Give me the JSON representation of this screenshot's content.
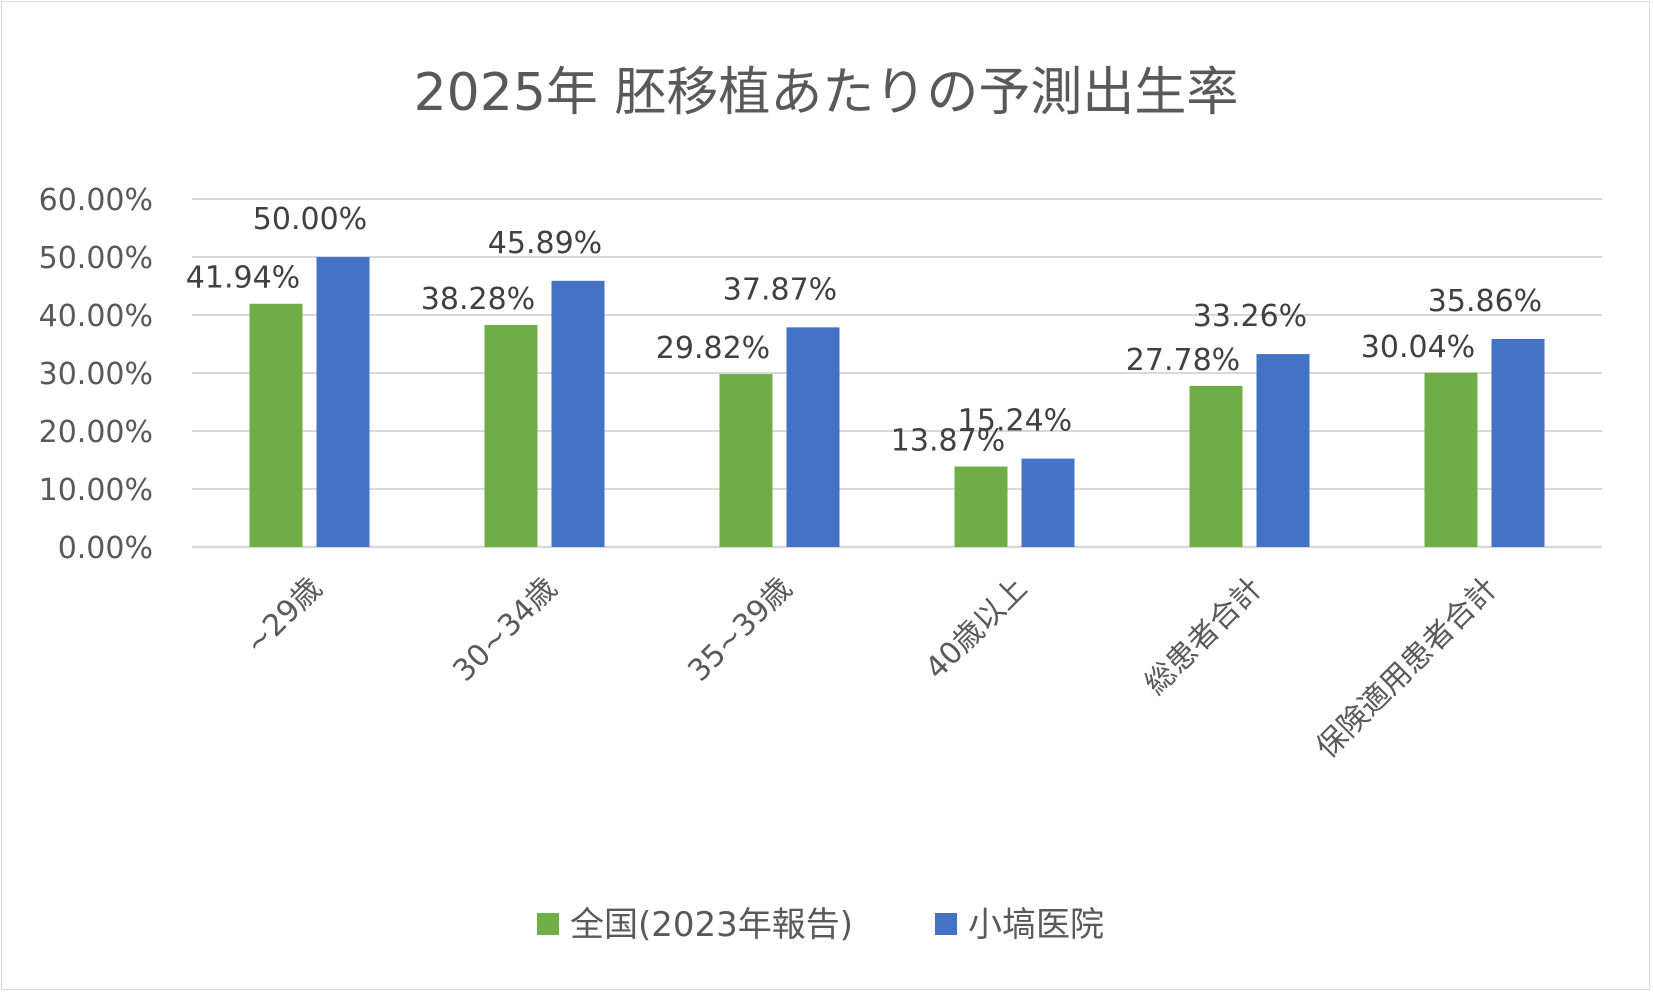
{
  "chart_data": {
    "type": "bar",
    "title": "2025年 胚移植あたりの予測出生率",
    "categories": [
      "~29歳",
      "30~34歳",
      "35~39歳",
      "40歳以上",
      "総患者合計",
      "保険適用患者合計"
    ],
    "series": [
      {
        "name": "全国(2023年報告)",
        "color": "#70ad47",
        "values": [
          41.94,
          38.28,
          29.82,
          13.87,
          27.78,
          30.04
        ],
        "labels": [
          "41.94%",
          "38.28%",
          "29.82%",
          "13.87%",
          "27.78%",
          "30.04%"
        ]
      },
      {
        "name": "小塙医院",
        "color": "#4472c4",
        "values": [
          50.0,
          45.89,
          37.87,
          15.24,
          33.26,
          35.86
        ],
        "labels": [
          "50.00%",
          "45.89%",
          "37.87%",
          "15.24%",
          "33.26%",
          "35.86%"
        ]
      }
    ],
    "yticks": [
      "0.00%",
      "10.00%",
      "20.00%",
      "30.00%",
      "40.00%",
      "50.00%",
      "60.00%"
    ],
    "ylim": [
      0,
      60
    ],
    "grid": true,
    "legend": "bottom",
    "xlabel": "",
    "ylabel": ""
  }
}
